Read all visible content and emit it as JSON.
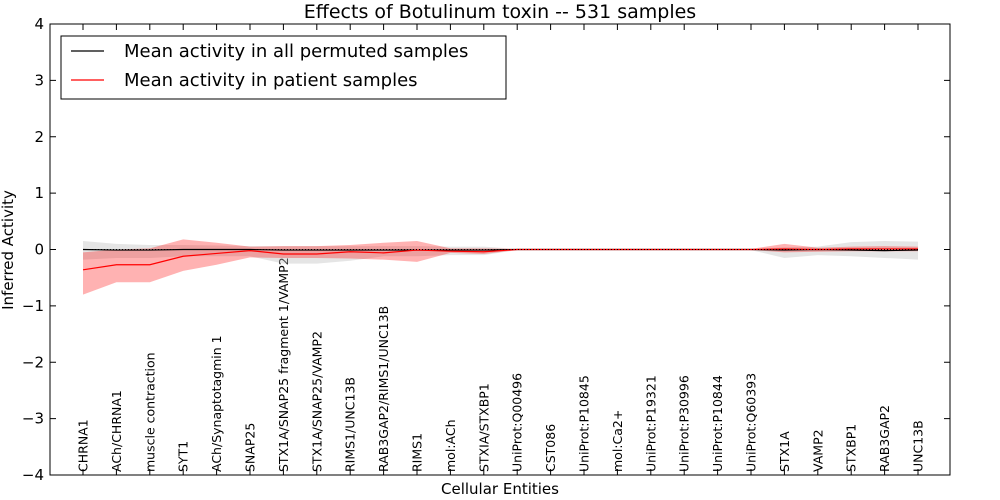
{
  "chart_data": {
    "type": "line",
    "title": "Effects of Botulinum toxin -- 531 samples",
    "xlabel": "Cellular Entities",
    "ylabel": "Inferred Activity",
    "ylim": [
      -4,
      4
    ],
    "yticks": [
      -4,
      -3,
      -2,
      -1,
      0,
      1,
      2,
      3,
      4
    ],
    "ytick_labels": [
      "−4",
      "−3",
      "−2",
      "−1",
      "0",
      "1",
      "2",
      "3",
      "4"
    ],
    "legend_position": "top-left",
    "categories": [
      "CHRNA1",
      "ACh/CHRNA1",
      "muscle contraction",
      "SYT1",
      "ACh/Synaptotagmin 1",
      "SNAP25",
      "STX1A/SNAP25 fragment 1/VAMP2",
      "STX1A/SNAP25/VAMP2",
      "RIMS1/UNC13B",
      "RAB3GAP2/RIMS1/UNC13B",
      "RIMS1",
      "mol:ACh",
      "STXIA/STXBP1",
      "UniProt:Q00496",
      "CST086",
      "UniProt:P10845",
      "mol:Ca2+",
      "UniProt:P19321",
      "UniProt:P30996",
      "UniProt:P10844",
      "UniProt:Q60393",
      "STX1A",
      "VAMP2",
      "STXBP1",
      "RAB3GAP2",
      "UNC13B"
    ],
    "series": [
      {
        "name": "Mean activity in all permuted samples",
        "color": "#000000",
        "band_color": "#bfbfbf",
        "values": [
          0.0,
          -0.01,
          -0.01,
          0.0,
          0.0,
          0.0,
          -0.01,
          -0.01,
          -0.01,
          -0.01,
          -0.01,
          -0.01,
          -0.01,
          0.0,
          0.0,
          0.0,
          0.0,
          0.0,
          0.0,
          0.0,
          0.0,
          -0.01,
          0.0,
          -0.01,
          -0.02,
          -0.01
        ],
        "upper": [
          0.15,
          0.1,
          0.08,
          0.08,
          0.07,
          0.06,
          0.06,
          0.06,
          0.06,
          0.06,
          0.06,
          0.05,
          0.05,
          0.01,
          0.01,
          0.01,
          0.01,
          0.01,
          0.01,
          0.01,
          0.01,
          0.04,
          0.05,
          0.13,
          0.15,
          0.14
        ],
        "lower": [
          -0.18,
          -0.15,
          -0.15,
          -0.12,
          -0.12,
          -0.12,
          -0.25,
          -0.25,
          -0.2,
          -0.12,
          -0.12,
          -0.1,
          -0.1,
          -0.01,
          -0.01,
          -0.01,
          -0.01,
          -0.01,
          -0.01,
          -0.01,
          -0.01,
          -0.15,
          -0.1,
          -0.12,
          -0.15,
          -0.18
        ]
      },
      {
        "name": "Mean activity in patient samples",
        "color": "#ff0000",
        "band_color": "#ff0000",
        "values": [
          -0.36,
          -0.27,
          -0.27,
          -0.12,
          -0.07,
          -0.02,
          -0.08,
          -0.08,
          -0.04,
          -0.06,
          -0.01,
          -0.03,
          -0.04,
          0.0,
          0.0,
          0.0,
          0.0,
          0.0,
          0.0,
          0.0,
          0.0,
          0.01,
          0.0,
          0.01,
          0.01,
          0.01
        ],
        "upper": [
          -0.05,
          0.0,
          0.02,
          0.18,
          0.12,
          0.05,
          0.06,
          0.06,
          0.08,
          0.12,
          0.15,
          0.02,
          0.02,
          0.01,
          0.01,
          0.01,
          0.01,
          0.01,
          0.01,
          0.01,
          0.01,
          0.1,
          0.03,
          0.05,
          0.06,
          0.05
        ],
        "lower": [
          -0.8,
          -0.58,
          -0.58,
          -0.38,
          -0.27,
          -0.14,
          -0.15,
          -0.15,
          -0.16,
          -0.18,
          -0.22,
          -0.06,
          -0.08,
          -0.01,
          -0.01,
          -0.01,
          -0.01,
          -0.01,
          -0.01,
          -0.01,
          -0.01,
          -0.05,
          -0.04,
          -0.03,
          -0.03,
          -0.03
        ]
      }
    ]
  }
}
